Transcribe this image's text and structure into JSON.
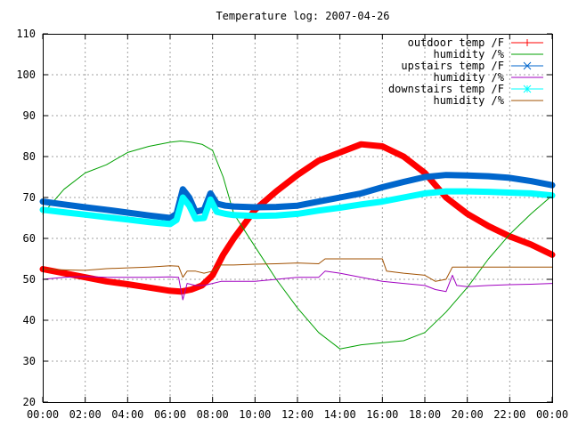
{
  "chart_data": {
    "type": "line",
    "title": "Temperature log: 2007-04-26",
    "xlabel": "",
    "ylabel": "",
    "xlim": [
      0,
      24
    ],
    "ylim": [
      20,
      110
    ],
    "grid": true,
    "legend_position": "top-right",
    "x_ticks": [
      "00:00",
      "02:00",
      "04:00",
      "06:00",
      "08:00",
      "10:00",
      "12:00",
      "14:00",
      "16:00",
      "18:00",
      "20:00",
      "22:00",
      "00:00"
    ],
    "y_ticks": [
      "20",
      "30",
      "40",
      "50",
      "60",
      "70",
      "80",
      "90",
      "100",
      "110"
    ],
    "series": [
      {
        "name": "outdoor temp /F",
        "color": "#ff0000",
        "marker": "plus",
        "style": "heavy",
        "x": [
          0,
          1,
          2,
          3,
          4,
          5,
          6,
          6.5,
          7,
          7.5,
          8,
          8.5,
          9,
          9.5,
          10,
          11,
          12,
          13,
          14,
          15,
          16,
          17,
          18,
          19,
          20,
          21,
          22,
          23,
          24
        ],
        "y": [
          52.5,
          51.5,
          50.5,
          49.5,
          48.8,
          48,
          47.2,
          47,
          47.5,
          48.5,
          51,
          56,
          60,
          63.5,
          67,
          71.5,
          75.5,
          79,
          81,
          83,
          82.5,
          80,
          76,
          70,
          66,
          63,
          60.5,
          58.5,
          56
        ]
      },
      {
        "name": "humidity /%",
        "color": "#00a000",
        "marker": "none",
        "style": "line",
        "x": [
          0,
          1,
          2,
          3,
          4,
          5,
          6,
          6.5,
          7,
          7.5,
          8,
          8.5,
          9,
          9.5,
          10,
          11,
          12,
          13,
          14,
          15,
          16,
          17,
          18,
          19,
          20,
          21,
          22,
          23,
          24
        ],
        "y": [
          66,
          72,
          76,
          78,
          81,
          82.5,
          83.5,
          83.8,
          83.5,
          83,
          81.5,
          75,
          66,
          62,
          58,
          50,
          43,
          37,
          33,
          34,
          34.5,
          35,
          37,
          42,
          48,
          55,
          61,
          66,
          70.5
        ]
      },
      {
        "name": "upstairs temp /F",
        "color": "#0066cc",
        "marker": "cross",
        "style": "heavy",
        "x": [
          0,
          1,
          2,
          3,
          4,
          5,
          6,
          6.3,
          6.6,
          6.9,
          7.2,
          7.6,
          7.9,
          8.2,
          8.6,
          9,
          10,
          11,
          12,
          13,
          14,
          15,
          16,
          17,
          18,
          19,
          20,
          21,
          22,
          23,
          24
        ],
        "y": [
          69,
          68.3,
          67.6,
          67,
          66.3,
          65.6,
          65,
          66,
          72,
          70,
          66.5,
          67,
          71,
          68.5,
          68,
          67.8,
          67.6,
          67.7,
          68,
          69,
          70,
          71,
          72.5,
          73.8,
          75,
          75.5,
          75.4,
          75.2,
          74.8,
          74,
          73
        ]
      },
      {
        "name": "humidity /%",
        "color": "#a000c0",
        "marker": "none",
        "style": "line",
        "x": [
          0,
          1,
          2,
          3,
          4,
          5,
          6,
          6.4,
          6.6,
          6.8,
          7.2,
          7.6,
          8,
          8.4,
          9,
          10,
          11,
          12,
          13,
          13.3,
          14,
          15,
          16,
          17,
          18,
          18.5,
          19,
          19.3,
          19.5,
          20,
          21,
          22,
          23,
          24
        ],
        "y": [
          50,
          50.5,
          50.7,
          50.5,
          50.5,
          50.5,
          50.6,
          50.5,
          45,
          49,
          48.5,
          48.5,
          49,
          49.5,
          49.5,
          49.5,
          50,
          50.5,
          50.5,
          52,
          51.5,
          50.5,
          49.5,
          49,
          48.5,
          47.5,
          47,
          51,
          48.5,
          48.2,
          48.5,
          48.7,
          48.8,
          49
        ]
      },
      {
        "name": "downstairs temp /F",
        "color": "#00ffff",
        "marker": "star",
        "style": "heavy",
        "x": [
          0,
          1,
          2,
          3,
          4,
          5,
          6,
          6.3,
          6.6,
          6.9,
          7.2,
          7.6,
          7.9,
          8.2,
          8.6,
          9,
          10,
          11,
          12,
          13,
          14,
          15,
          16,
          17,
          18,
          19,
          20,
          21,
          22,
          23,
          24
        ],
        "y": [
          67,
          66.4,
          65.8,
          65.2,
          64.6,
          64,
          63.5,
          64.5,
          70,
          68,
          64.8,
          65,
          69.5,
          66.5,
          66,
          65.7,
          65.5,
          65.6,
          66,
          66.8,
          67.5,
          68.3,
          69,
          70,
          71,
          71.5,
          71.5,
          71.4,
          71.2,
          71,
          70.5
        ]
      },
      {
        "name": "humidity /%",
        "color": "#a05000",
        "marker": "none",
        "style": "line",
        "x": [
          0,
          1,
          2,
          3,
          4,
          5,
          6,
          6.4,
          6.6,
          6.8,
          7.2,
          7.6,
          8,
          8.4,
          9,
          10,
          11,
          12,
          13,
          13.3,
          14,
          15,
          16,
          16.2,
          17,
          18,
          18.5,
          19,
          19.3,
          19.5,
          20,
          21,
          22,
          23,
          24
        ],
        "y": [
          52.5,
          52.3,
          52.2,
          52.6,
          52.8,
          53,
          53.3,
          53.2,
          50.5,
          52,
          52,
          51.5,
          52,
          53.5,
          53.5,
          53.7,
          53.8,
          54,
          53.8,
          55,
          55,
          55,
          55,
          52,
          51.5,
          51,
          49.5,
          50,
          53,
          53,
          53,
          53,
          53,
          53,
          53
        ]
      }
    ]
  }
}
